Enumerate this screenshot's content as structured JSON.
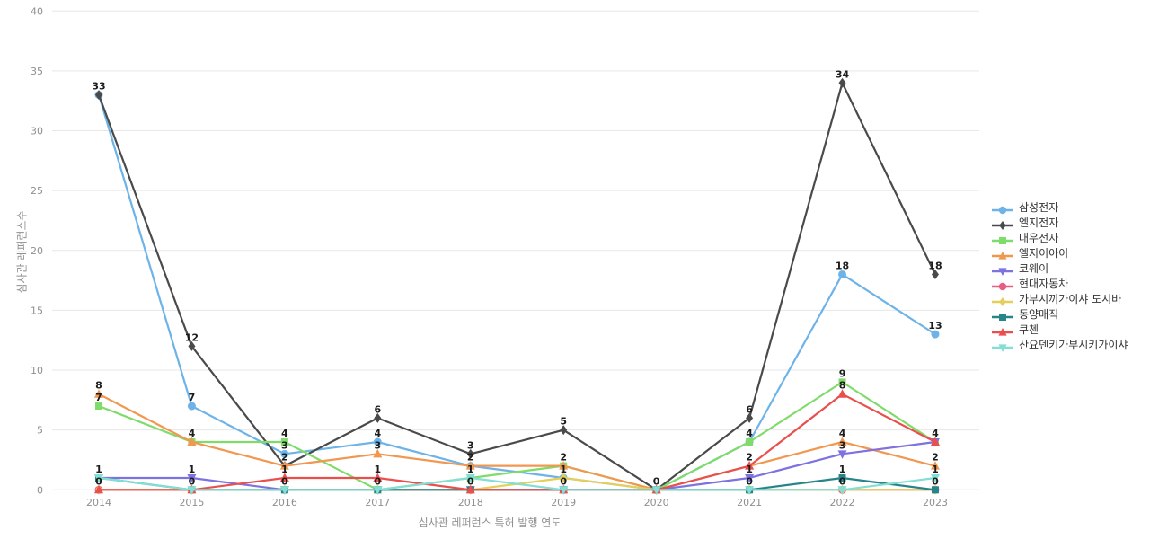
{
  "chart_data": {
    "type": "line",
    "title": "",
    "xlabel": "심사관 레퍼런스 특허 발행 연도",
    "ylabel": "심사관 레퍼런스수",
    "categories": [
      2014,
      2015,
      2016,
      2017,
      2018,
      2019,
      2020,
      2021,
      2022,
      2023
    ],
    "ylim": [
      0,
      40
    ],
    "yticks": [
      0,
      5,
      10,
      15,
      20,
      25,
      30,
      35,
      40
    ],
    "grid": "horizontal",
    "legend_position": "right",
    "colors": {
      "grid": "#e7e7e7",
      "tick_text": "#8f8f8f",
      "data_label": "#1c1c1c"
    },
    "series": [
      {
        "name": "삼성전자",
        "color": "#6db3e8",
        "marker": "circle",
        "values": [
          33,
          7,
          3,
          4,
          2,
          1,
          0,
          4,
          18,
          13
        ]
      },
      {
        "name": "엘지전자",
        "color": "#4a4a4a",
        "marker": "diamond",
        "values": [
          33,
          12,
          2,
          6,
          3,
          5,
          0,
          6,
          34,
          18
        ]
      },
      {
        "name": "대우전자",
        "color": "#7fdb6a",
        "marker": "square",
        "values": [
          7,
          4,
          4,
          0,
          1,
          2,
          0,
          4,
          9,
          4
        ]
      },
      {
        "name": "엘지이아이",
        "color": "#f19750",
        "marker": "triangle-up",
        "values": [
          8,
          4,
          2,
          3,
          2,
          2,
          0,
          2,
          4,
          2
        ]
      },
      {
        "name": "코웨이",
        "color": "#7d72e0",
        "marker": "triangle-down",
        "values": [
          1,
          1,
          0,
          0,
          0,
          0,
          0,
          1,
          3,
          4
        ]
      },
      {
        "name": "현대자동차",
        "color": "#e85d82",
        "marker": "circle",
        "values": [
          0,
          0,
          0,
          0,
          0,
          0,
          0,
          0,
          0,
          0
        ]
      },
      {
        "name": "가부시끼가이샤 도시바",
        "color": "#e5cf5a",
        "marker": "diamond",
        "values": [
          0,
          0,
          0,
          0,
          0,
          1,
          0,
          0,
          0,
          0
        ]
      },
      {
        "name": "동양매직",
        "color": "#27858a",
        "marker": "square",
        "values": [
          1,
          0,
          0,
          0,
          0,
          0,
          0,
          0,
          1,
          0
        ]
      },
      {
        "name": "쿠첸",
        "color": "#e94f4d",
        "marker": "triangle-up",
        "values": [
          0,
          0,
          1,
          1,
          0,
          0,
          0,
          2,
          8,
          4
        ]
      },
      {
        "name": "산요덴키가부시키가이샤",
        "color": "#83ded4",
        "marker": "triangle-down",
        "values": [
          1,
          0,
          0,
          0,
          1,
          0,
          0,
          0,
          0,
          1
        ]
      }
    ]
  }
}
